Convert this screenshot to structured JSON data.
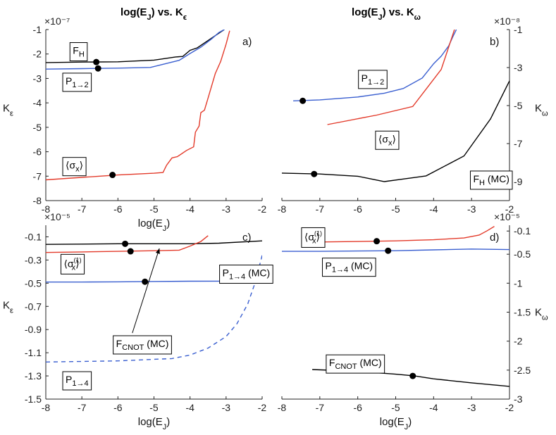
{
  "chart_data": [
    {
      "type": "line",
      "panel": "a)",
      "title": "log(E_J) vs. K_ε",
      "xlabel": "log(E_J)",
      "ylabel": "K_ε",
      "xlim": [
        -8,
        -2
      ],
      "ylim": [
        -8,
        -1
      ],
      "xticks": [
        "-8",
        "-7",
        "-6",
        "-5",
        "-4",
        "-3",
        "-2"
      ],
      "yticks": [
        "-1",
        "-2",
        "-3",
        "-4",
        "-5",
        "-6",
        "-7",
        "-8"
      ],
      "exponent": "×10⁻⁷",
      "y_axis_side": "left",
      "series": [
        {
          "name": "F_H",
          "color": "#000000",
          "dash": false,
          "x": [
            -8,
            -7,
            -6,
            -5,
            -4.4,
            -4.2,
            -4.0,
            -3.8,
            -3.6,
            -3.4,
            -3.2,
            -3.05
          ],
          "y": [
            -2.35,
            -2.33,
            -2.32,
            -2.25,
            -2.12,
            -2.1,
            -1.85,
            -1.75,
            -1.55,
            -1.35,
            -1.15,
            -1.0
          ],
          "marker": {
            "x": -6.6,
            "y": -2.33
          }
        },
        {
          "name": "P_{1→2}",
          "color": "#3a5fd0",
          "dash": false,
          "x": [
            -8,
            -7,
            -6,
            -5.1,
            -4.3,
            -4.0,
            -3.7,
            -3.4,
            -3.2,
            -3.05
          ],
          "y": [
            -2.62,
            -2.6,
            -2.58,
            -2.55,
            -2.26,
            -1.98,
            -1.72,
            -1.38,
            -1.12,
            -1.0
          ],
          "marker": {
            "x": -6.55,
            "y": -2.59
          }
        },
        {
          "name": "⟨σ_x⟩",
          "color": "#e33a2a",
          "dash": false,
          "x": [
            -8,
            -7,
            -6,
            -5,
            -4.75,
            -4.65,
            -4.5,
            -4.35,
            -4.1,
            -3.9,
            -3.85,
            -3.75,
            -3.7,
            -3.6,
            -3.5,
            -3.4,
            -3.3,
            -3.15,
            -3.0,
            -2.9
          ],
          "y": [
            -7.15,
            -7.05,
            -6.95,
            -6.88,
            -6.85,
            -6.55,
            -6.25,
            -6.2,
            -5.95,
            -5.8,
            -5.2,
            -4.95,
            -4.4,
            -4.3,
            -3.8,
            -3.3,
            -2.8,
            -2.3,
            -1.6,
            -1.05
          ],
          "marker": {
            "x": -6.15,
            "y": -6.95
          }
        }
      ],
      "labels": [
        {
          "text": "F",
          "sub": "H",
          "series": 0,
          "x": -7.35,
          "y": -1.85
        },
        {
          "text": "P",
          "sub": "1→2",
          "series": 1,
          "x": -7.55,
          "y": -3.1
        },
        {
          "text": "⟨σ",
          "sub": "x",
          "tail": "⟩",
          "series": 2,
          "x": -7.55,
          "y": -6.55
        }
      ]
    },
    {
      "type": "line",
      "panel": "b)",
      "title": "log(E_J) vs. K_ω",
      "xlabel": "",
      "ylabel": "K_ω",
      "xlim": [
        -8,
        -2
      ],
      "ylim": [
        -10,
        -1
      ],
      "xticks": [
        "-8",
        "-7",
        "-6",
        "-5",
        "-4",
        "-3",
        "-2"
      ],
      "yticks": [
        "-1",
        "-3",
        "-5",
        "-7",
        "-9"
      ],
      "exponent": "×10⁻⁸",
      "y_axis_side": "right",
      "series": [
        {
          "name": "P_{1→2}",
          "color": "#3a5fd0",
          "dash": false,
          "x": [
            -7.7,
            -7,
            -6,
            -5.3,
            -4.8,
            -4.3,
            -4.0,
            -3.8,
            -3.6,
            -3.5,
            -3.4
          ],
          "y": [
            -4.75,
            -4.7,
            -4.55,
            -4.35,
            -4.1,
            -3.55,
            -2.8,
            -2.4,
            -1.85,
            -1.4,
            -1.0
          ],
          "marker": {
            "x": -7.45,
            "y": -4.75
          }
        },
        {
          "name": "⟨σ_x⟩",
          "color": "#e33a2a",
          "dash": false,
          "x": [
            -6.8,
            -5.5,
            -4.55,
            -3.8,
            -3.6,
            -3.45
          ],
          "y": [
            -6.0,
            -5.5,
            -5.05,
            -3.1,
            -1.9,
            -1.0
          ],
          "marker": null
        },
        {
          "name": "F_H (MC)",
          "color": "#000000",
          "dash": false,
          "x": [
            -8,
            -7,
            -6,
            -5.3,
            -4.2,
            -3.2,
            -2.5,
            -2
          ],
          "y": [
            -8.55,
            -8.6,
            -8.72,
            -9.0,
            -8.7,
            -7.65,
            -5.7,
            -3.7
          ],
          "marker": {
            "x": -7.15,
            "y": -8.6
          }
        }
      ],
      "labels": [
        {
          "text": "P",
          "sub": "1→2",
          "series": 0,
          "x": -6.0,
          "y": -3.55
        },
        {
          "text": "⟨σ",
          "sub": "x",
          "tail": "⟩",
          "series": 1,
          "x": -5.55,
          "y": -6.75
        },
        {
          "text": "F",
          "sub": "H",
          "tail": " (MC)",
          "series": 2,
          "x": -3.05,
          "y": -8.85
        }
      ]
    },
    {
      "type": "line",
      "panel": "c)",
      "title": "",
      "xlabel": "log(E_J)",
      "ylabel": "K_ε",
      "xlim": [
        -8,
        -2
      ],
      "ylim": [
        -1.5,
        0
      ],
      "xticks": [
        "-8",
        "-7",
        "-6",
        "-5",
        "-4",
        "-3",
        "-2"
      ],
      "yticks": [
        "-0.1",
        "-0.3",
        "-0.5",
        "-0.7",
        "-0.9",
        "-1.1",
        "-1.3",
        "-1.5"
      ],
      "exponent": "×10⁻⁵",
      "y_axis_side": "left",
      "series": [
        {
          "name": "F_CNOT (MC)",
          "color": "#000000",
          "dash": false,
          "x": [
            -8,
            -7,
            -6,
            -5,
            -4,
            -3.2,
            -2
          ],
          "y": [
            -0.165,
            -0.163,
            -0.16,
            -0.16,
            -0.16,
            -0.155,
            -0.135
          ],
          "marker": {
            "x": -5.8,
            "y": -0.16
          }
        },
        {
          "name": "⟨σ_x^(1)⟩",
          "color": "#e33a2a",
          "dash": false,
          "x": [
            -8,
            -7,
            -6,
            -5,
            -4.3,
            -4.0,
            -3.7,
            -3.5
          ],
          "y": [
            -0.235,
            -0.23,
            -0.225,
            -0.22,
            -0.215,
            -0.18,
            -0.14,
            -0.09
          ],
          "marker": {
            "x": -5.65,
            "y": -0.225
          }
        },
        {
          "name": "P_{1→4} (MC)",
          "color": "#3a5fd0",
          "dash": false,
          "x": [
            -8,
            -7,
            -6,
            -5,
            -4,
            -3,
            -2
          ],
          "y": [
            -0.49,
            -0.49,
            -0.488,
            -0.485,
            -0.483,
            -0.482,
            -0.48
          ],
          "marker": {
            "x": -5.25,
            "y": -0.487
          }
        },
        {
          "name": "P_{1→4}",
          "color": "#3a5fd0",
          "dash": true,
          "x": [
            -8,
            -6,
            -4.5,
            -4.0,
            -3.5,
            -3.0,
            -2.7,
            -2.4,
            -2.2,
            -2.0
          ],
          "y": [
            -1.18,
            -1.17,
            -1.15,
            -1.12,
            -1.06,
            -0.96,
            -0.85,
            -0.68,
            -0.5,
            -0.26
          ],
          "marker": null
        }
      ],
      "labels": [
        {
          "text": "⟨σ",
          "sub": "x",
          "sup": "(1)",
          "tail": "⟩",
          "series": 1,
          "x": -7.6,
          "y": -0.33
        },
        {
          "text": "P",
          "sub": "1→4",
          "tail": " (MC)",
          "series": 2,
          "x": -3.2,
          "y": -0.41
        },
        {
          "text": "F",
          "sub": "CNOT",
          "tail": " (MC)",
          "series": 0,
          "x": -6.15,
          "y": -1.02
        },
        {
          "text": "P",
          "sub": "1→4",
          "series": 3,
          "x": -7.55,
          "y": -1.33
        }
      ],
      "arrow": {
        "from": {
          "x": -5.6,
          "y": -0.93
        },
        "to": {
          "x": -4.85,
          "y": -0.2
        }
      }
    },
    {
      "type": "line",
      "panel": "d)",
      "title": "",
      "xlabel": "log(E_J)",
      "ylabel": "K_ω",
      "xlim": [
        -8,
        -2
      ],
      "ylim": [
        -3,
        0
      ],
      "xticks": [
        "-8",
        "-7",
        "-6",
        "-5",
        "-4",
        "-3",
        "-2"
      ],
      "yticks": [
        "-0.1",
        "-0.5",
        "-1",
        "-1.5",
        "-2",
        "-2.5",
        "-3"
      ],
      "exponent": "×10⁻⁵",
      "y_axis_side": "right",
      "series": [
        {
          "name": "⟨σ_x^(1)⟩",
          "color": "#e33a2a",
          "dash": false,
          "x": [
            -7.2,
            -6,
            -5,
            -4,
            -3.2,
            -2.8,
            -2.6,
            -2.4
          ],
          "y": [
            -0.29,
            -0.28,
            -0.27,
            -0.25,
            -0.22,
            -0.17,
            -0.1,
            -0.02
          ],
          "marker": {
            "x": -5.5,
            "y": -0.275
          }
        },
        {
          "name": "P_{1→4} (MC)",
          "color": "#3a5fd0",
          "dash": false,
          "x": [
            -8,
            -7,
            -6,
            -5,
            -4,
            -3,
            -2
          ],
          "y": [
            -0.45,
            -0.45,
            -0.445,
            -0.44,
            -0.425,
            -0.41,
            -0.42
          ],
          "marker": {
            "x": -5.2,
            "y": -0.44
          }
        },
        {
          "name": "F_CNOT (MC)",
          "color": "#000000",
          "dash": false,
          "x": [
            -7.2,
            -6,
            -5,
            -4.5,
            -4,
            -3,
            -2
          ],
          "y": [
            -2.49,
            -2.52,
            -2.57,
            -2.6,
            -2.65,
            -2.72,
            -2.78
          ],
          "marker": {
            "x": -4.55,
            "y": -2.6
          }
        }
      ],
      "labels": [
        {
          "text": "⟨σ",
          "sub": "x",
          "sup": "(1)",
          "tail": "⟩",
          "series": 0,
          "x": -7.5,
          "y": -0.2
        },
        {
          "text": "P",
          "sub": "1→4",
          "tail": " (MC)",
          "series": 1,
          "x": -6.95,
          "y": -0.7
        },
        {
          "text": "F",
          "sub": "CNOT",
          "tail": " (MC)",
          "series": 2,
          "x": -6.85,
          "y": -2.37
        }
      ]
    }
  ]
}
